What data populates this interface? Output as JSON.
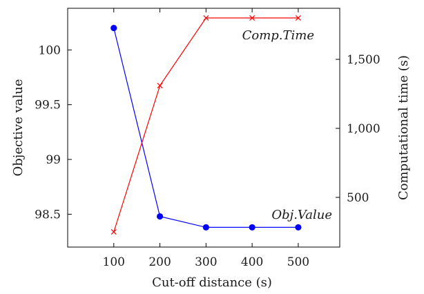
{
  "chart_data": {
    "type": "line",
    "x": [
      100,
      200,
      300,
      400,
      500
    ],
    "xlabel": "Cut-off distance (s)",
    "xlim": [
      0,
      590
    ],
    "xticks": [
      "100",
      "200",
      "300",
      "400",
      "500"
    ],
    "grid": false,
    "series": [
      {
        "name": "Obj.Value",
        "axis": "left",
        "color": "#0000ff",
        "marker": "circle",
        "values": [
          100.2,
          98.48,
          98.38,
          98.38,
          98.38
        ]
      },
      {
        "name": "Comp.Time",
        "axis": "right",
        "color": "#ff0000",
        "marker": "x",
        "values": [
          250,
          1310,
          1800,
          1800,
          1800
        ]
      }
    ],
    "y_left": {
      "label": "Objective value",
      "lim": [
        98.2,
        100.38
      ],
      "ticks": [
        98.5,
        99,
        99.5,
        100
      ],
      "tick_labels": [
        "98.5",
        "99",
        "99.5",
        "100"
      ]
    },
    "y_right": {
      "label": "Computational time (s)",
      "lim": [
        140,
        1870
      ],
      "ticks": [
        500,
        1000,
        1500
      ],
      "tick_labels": [
        "500",
        "1,000",
        "1,500"
      ]
    }
  }
}
